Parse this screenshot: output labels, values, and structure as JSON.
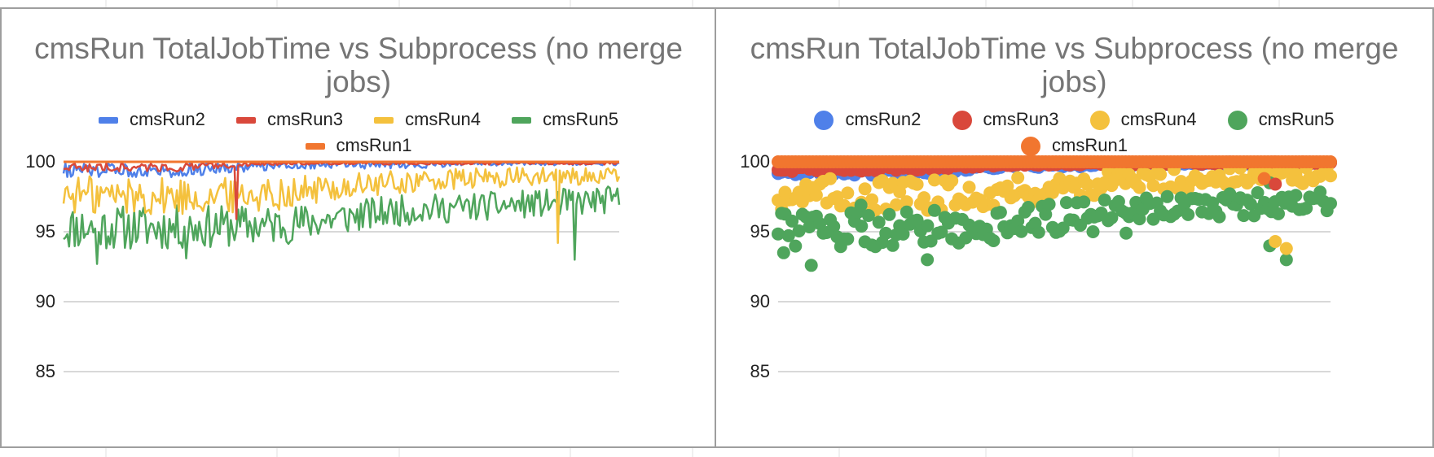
{
  "colors": {
    "cmsRun2": "#4f80e9",
    "cmsRun3": "#d9483b",
    "cmsRun4": "#f4c13d",
    "cmsRun5": "#4fa55c",
    "cmsRun1": "#f1762f",
    "gridline": "#cccccc",
    "title": "#757575"
  },
  "chart_data": [
    {
      "type": "line",
      "title": "cmsRun TotalJobTime vs Subprocess (no merge jobs)",
      "xlabel": "",
      "ylabel": "",
      "ylim": [
        85,
        100
      ],
      "yticks": [
        "100",
        "95",
        "90",
        "85"
      ],
      "grid": true,
      "legend_position": "top",
      "legend": [
        "cmsRun2",
        "cmsRun3",
        "cmsRun4",
        "cmsRun5",
        "cmsRun1"
      ],
      "x": {
        "start": 1,
        "end": 300
      },
      "series": [
        {
          "name": "cmsRun1",
          "shape": "flat",
          "values": [
            100,
            100
          ]
        },
        {
          "name": "cmsRun2",
          "shape": "noise",
          "values": [
            99.4,
            99.4,
            99.8,
            99.8,
            99.9,
            99.9
          ],
          "noise_amp": [
            0.5,
            0.5,
            0.3,
            0.3,
            0.15,
            0.15
          ]
        },
        {
          "name": "cmsRun3",
          "shape": "noise",
          "values": [
            99.6,
            99.6,
            99.9,
            99.9,
            99.9,
            99.9
          ],
          "noise_amp": [
            0.3,
            0.3,
            0.1,
            0.1,
            0.1,
            0.1
          ]
        },
        {
          "name": "cmsRun4",
          "shape": "noise",
          "values": [
            97.7,
            97.5,
            97.8,
            98.5,
            98.9,
            99.0
          ],
          "noise_amp": [
            1.4,
            1.4,
            1.2,
            0.9,
            0.7,
            0.6
          ]
        },
        {
          "name": "cmsRun5",
          "shape": "noise",
          "values": [
            95.3,
            95.3,
            95.5,
            96.5,
            96.9,
            97.3
          ],
          "noise_amp": [
            1.6,
            1.6,
            1.4,
            1.1,
            1.0,
            1.0
          ]
        }
      ],
      "dips": [
        {
          "series": "cmsRun3",
          "at": 0.31,
          "value": 95.9
        },
        {
          "series": "cmsRun4",
          "at": 0.89,
          "value": 94.2
        },
        {
          "series": "cmsRun5",
          "at": 0.92,
          "value": 93.0
        },
        {
          "series": "cmsRun5",
          "at": 0.06,
          "value": 92.7
        },
        {
          "series": "cmsRun5",
          "at": 0.22,
          "value": 93.1
        }
      ]
    },
    {
      "type": "scatter",
      "title": "cmsRun TotalJobTime vs Subprocess (no merge jobs)",
      "xlabel": "",
      "ylabel": "",
      "ylim": [
        85,
        100
      ],
      "yticks": [
        "100",
        "95",
        "90",
        "85"
      ],
      "grid": true,
      "legend_position": "top",
      "legend": [
        "cmsRun2",
        "cmsRun3",
        "cmsRun4",
        "cmsRun5",
        "cmsRun1"
      ],
      "x": {
        "start": 1,
        "end": 300
      },
      "series": [
        {
          "name": "cmsRun2",
          "shape": "noise",
          "values": [
            99.3,
            99.3,
            99.7,
            99.8,
            99.9,
            99.9
          ],
          "noise_amp": [
            0.3,
            0.3,
            0.2,
            0.1,
            0.1,
            0.1
          ]
        },
        {
          "name": "cmsRun3",
          "shape": "noise",
          "values": [
            99.5,
            99.5,
            99.8,
            99.9,
            99.9,
            99.9
          ],
          "noise_amp": [
            0.2,
            0.2,
            0.1,
            0.1,
            0.1,
            0.1
          ]
        },
        {
          "name": "cmsRun4",
          "shape": "noise",
          "values": [
            97.7,
            97.5,
            97.8,
            98.5,
            98.9,
            99.0
          ],
          "noise_amp": [
            1.2,
            1.2,
            1.0,
            0.8,
            0.7,
            0.6
          ]
        },
        {
          "name": "cmsRun5",
          "shape": "noise",
          "values": [
            95.3,
            95.3,
            95.5,
            96.5,
            96.9,
            97.3
          ],
          "noise_amp": [
            1.4,
            1.4,
            1.2,
            1.0,
            0.9,
            0.9
          ]
        },
        {
          "name": "cmsRun1",
          "shape": "flat",
          "values": [
            100,
            100
          ]
        }
      ],
      "outliers": [
        {
          "series": "cmsRun5",
          "at": 0.01,
          "value": 93.5
        },
        {
          "series": "cmsRun5",
          "at": 0.06,
          "value": 92.6
        },
        {
          "series": "cmsRun5",
          "at": 0.15,
          "value": 96.9
        },
        {
          "series": "cmsRun5",
          "at": 0.27,
          "value": 93.0
        },
        {
          "series": "cmsRun5",
          "at": 0.57,
          "value": 95.0
        },
        {
          "series": "cmsRun5",
          "at": 0.63,
          "value": 94.9
        },
        {
          "series": "cmsRun5",
          "at": 0.89,
          "value": 94.0
        },
        {
          "series": "cmsRun5",
          "at": 0.92,
          "value": 93.0
        },
        {
          "series": "cmsRun5",
          "at": 0.89,
          "value": 98.5
        },
        {
          "series": "cmsRun4",
          "at": 0.9,
          "value": 94.3
        },
        {
          "series": "cmsRun4",
          "at": 0.92,
          "value": 93.8
        },
        {
          "series": "cmsRun1",
          "at": 0.88,
          "value": 98.8
        },
        {
          "series": "cmsRun3",
          "at": 0.9,
          "value": 98.4
        }
      ]
    }
  ]
}
